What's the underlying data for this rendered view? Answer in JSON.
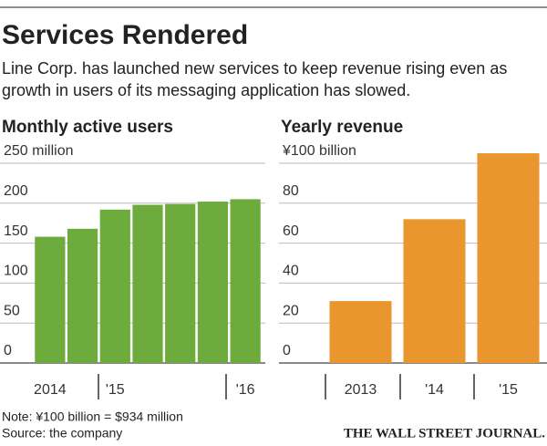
{
  "title": "Services Rendered",
  "subtitle": [
    "Line Corp. has launched new services to keep revenue rising even as",
    "growth in users of its messaging application has slowed."
  ],
  "note": "Note: ¥100 billion = $934 million",
  "source": "Source: the company",
  "credit": "THE WALL STREET JOURNAL.",
  "chart_data": [
    {
      "type": "bar",
      "title": "Monthly active users",
      "categories": [
        "2014",
        null,
        "'15",
        null,
        null,
        null,
        "'16"
      ],
      "values": [
        158,
        168,
        192,
        198,
        199,
        202,
        205
      ],
      "color": "#6cab3c",
      "ylim": [
        0,
        250
      ],
      "yticks": [
        0,
        50,
        100,
        150,
        200,
        {
          "value": 250,
          "label": "250 million"
        }
      ],
      "grid": true
    },
    {
      "type": "bar",
      "title": "Yearly revenue",
      "categories": [
        "2013",
        "'14",
        "'15"
      ],
      "values": [
        31,
        72,
        105
      ],
      "color": "#e9962f",
      "ylim": [
        0,
        108
      ],
      "yticks": [
        0,
        20,
        40,
        60,
        80,
        {
          "value": 100,
          "label": "¥100 billion"
        }
      ],
      "grid": true
    }
  ]
}
